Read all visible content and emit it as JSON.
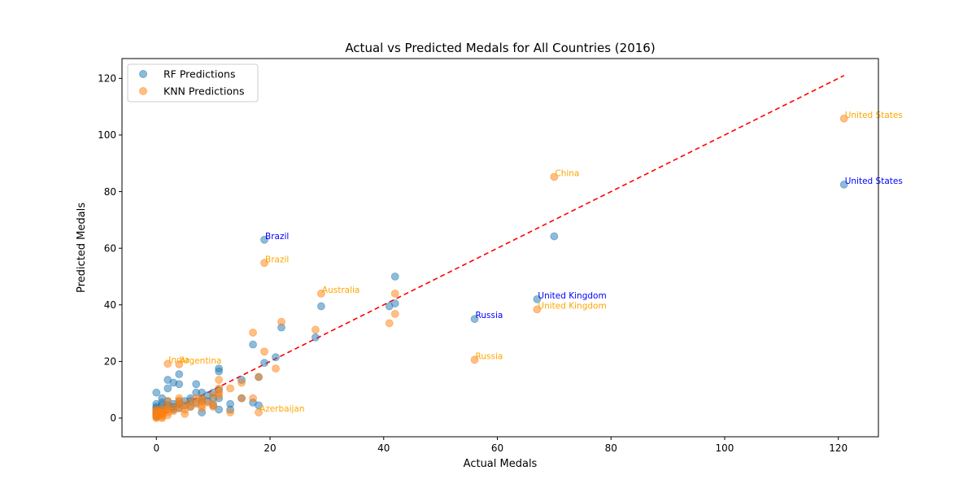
{
  "chart_data": {
    "type": "scatter",
    "title": "Actual vs Predicted Medals for All Countries (2016)",
    "xlabel": "Actual Medals",
    "ylabel": "Predicted Medals",
    "xlim": [
      -6.05,
      127.05
    ],
    "ylim": [
      -6.6,
      127
    ],
    "xticks": [
      0,
      20,
      40,
      60,
      80,
      100,
      120
    ],
    "yticks": [
      0,
      20,
      40,
      60,
      80,
      100,
      120
    ],
    "grid": false,
    "legend_position": "top-left",
    "reference_line": {
      "style": "dashed",
      "color": "#ff0000",
      "from": [
        0,
        0
      ],
      "to": [
        121,
        121
      ]
    },
    "series": [
      {
        "name": "RF Predictions",
        "color": "#1f77b4",
        "points": [
          [
            0,
            9
          ],
          [
            0,
            5
          ],
          [
            0,
            4
          ],
          [
            0,
            3.5
          ],
          [
            0,
            3
          ],
          [
            0,
            2.5
          ],
          [
            0,
            2
          ],
          [
            0,
            1.5
          ],
          [
            0,
            1
          ],
          [
            0,
            0.5
          ],
          [
            1,
            7
          ],
          [
            1,
            5.5
          ],
          [
            1,
            4.5
          ],
          [
            1,
            3.5
          ],
          [
            1,
            2.5
          ],
          [
            1,
            1.5
          ],
          [
            2,
            13.5
          ],
          [
            2,
            10.5
          ],
          [
            2,
            6
          ],
          [
            2,
            4.5
          ],
          [
            2,
            3.5
          ],
          [
            3,
            12.5
          ],
          [
            3,
            5
          ],
          [
            3,
            4
          ],
          [
            3,
            3
          ],
          [
            4,
            15.5
          ],
          [
            4,
            12
          ],
          [
            4,
            6
          ],
          [
            4,
            5
          ],
          [
            4,
            3.5
          ],
          [
            5,
            6
          ],
          [
            5,
            4.5
          ],
          [
            6,
            7
          ],
          [
            6,
            6
          ],
          [
            6,
            4
          ],
          [
            7,
            12
          ],
          [
            7,
            9
          ],
          [
            7,
            5.5
          ],
          [
            8,
            9
          ],
          [
            8,
            7
          ],
          [
            8,
            6
          ],
          [
            8,
            2
          ],
          [
            9,
            8
          ],
          [
            9,
            6
          ],
          [
            10,
            9
          ],
          [
            10,
            7
          ],
          [
            10,
            4.5
          ],
          [
            11,
            17.5
          ],
          [
            11,
            16.5
          ],
          [
            11,
            10
          ],
          [
            11,
            7
          ],
          [
            11,
            3
          ],
          [
            13,
            5
          ],
          [
            13,
            3
          ],
          [
            15,
            13.5
          ],
          [
            15,
            7
          ],
          [
            17,
            26
          ],
          [
            17,
            5.5
          ],
          [
            18,
            14.5
          ],
          [
            18,
            4.5
          ],
          [
            19,
            63
          ],
          [
            19,
            19.5
          ],
          [
            21,
            21.5
          ],
          [
            22,
            32
          ],
          [
            28,
            28.5
          ],
          [
            29,
            39.5
          ],
          [
            41,
            39.5
          ],
          [
            42,
            40.5
          ],
          [
            42,
            50
          ],
          [
            56,
            35
          ],
          [
            67,
            42
          ],
          [
            70,
            64.2
          ],
          [
            121,
            82.5
          ]
        ]
      },
      {
        "name": "KNN Predictions",
        "color": "#ff7f0e",
        "points": [
          [
            0,
            3
          ],
          [
            0,
            2.5
          ],
          [
            0,
            2
          ],
          [
            0,
            1.5
          ],
          [
            0,
            1
          ],
          [
            0,
            0.5
          ],
          [
            0,
            0
          ],
          [
            1,
            3.5
          ],
          [
            1,
            2.5
          ],
          [
            1,
            2
          ],
          [
            1,
            1.5
          ],
          [
            1,
            1
          ],
          [
            1,
            0.5
          ],
          [
            1,
            0
          ],
          [
            2,
            19.2
          ],
          [
            2,
            6
          ],
          [
            2,
            4
          ],
          [
            2,
            3
          ],
          [
            2,
            2
          ],
          [
            2,
            1
          ],
          [
            3,
            3.5
          ],
          [
            3,
            2.5
          ],
          [
            4,
            19
          ],
          [
            4,
            7
          ],
          [
            4,
            6
          ],
          [
            4,
            5
          ],
          [
            4,
            3.5
          ],
          [
            5,
            4.5
          ],
          [
            5,
            3
          ],
          [
            5,
            1.5
          ],
          [
            6,
            5.5
          ],
          [
            6,
            4
          ],
          [
            7,
            7
          ],
          [
            7,
            5
          ],
          [
            8,
            7
          ],
          [
            8,
            6
          ],
          [
            8,
            4.5
          ],
          [
            8,
            3.5
          ],
          [
            9,
            5.5
          ],
          [
            10,
            8
          ],
          [
            10,
            5
          ],
          [
            10,
            4
          ],
          [
            11,
            13.5
          ],
          [
            11,
            10.5
          ],
          [
            11,
            9
          ],
          [
            11,
            8
          ],
          [
            13,
            10.5
          ],
          [
            13,
            2
          ],
          [
            15,
            12.5
          ],
          [
            15,
            7
          ],
          [
            17,
            30.2
          ],
          [
            17,
            7
          ],
          [
            18,
            14.5
          ],
          [
            18,
            2
          ],
          [
            19,
            54.8
          ],
          [
            19,
            23.5
          ],
          [
            21,
            17.5
          ],
          [
            22,
            34
          ],
          [
            28,
            31.2
          ],
          [
            29,
            44
          ],
          [
            41,
            33.5
          ],
          [
            42,
            44
          ],
          [
            42,
            36.8
          ],
          [
            56,
            20.6
          ],
          [
            67,
            38.4
          ],
          [
            70,
            85.2
          ],
          [
            121,
            105.8
          ]
        ]
      }
    ],
    "annotations": [
      {
        "text": "United States",
        "x": 121,
        "y": 82.5,
        "series": "RF Predictions"
      },
      {
        "text": "Brazil",
        "x": 19,
        "y": 63,
        "series": "RF Predictions"
      },
      {
        "text": "United Kingdom",
        "x": 67,
        "y": 42,
        "series": "RF Predictions"
      },
      {
        "text": "Russia",
        "x": 56,
        "y": 35,
        "series": "RF Predictions"
      },
      {
        "text": "United States",
        "x": 121,
        "y": 105.8,
        "series": "KNN Predictions"
      },
      {
        "text": "China",
        "x": 70,
        "y": 85.2,
        "series": "KNN Predictions"
      },
      {
        "text": "Brazil",
        "x": 19,
        "y": 54.8,
        "series": "KNN Predictions"
      },
      {
        "text": "Australia",
        "x": 29,
        "y": 44,
        "series": "KNN Predictions"
      },
      {
        "text": "United Kingdom",
        "x": 67,
        "y": 38.4,
        "series": "KNN Predictions"
      },
      {
        "text": "Russia",
        "x": 56,
        "y": 20.6,
        "series": "KNN Predictions"
      },
      {
        "text": "India",
        "x": 2,
        "y": 19.2,
        "series": "KNN Predictions"
      },
      {
        "text": "Argentina",
        "x": 4,
        "y": 19,
        "series": "KNN Predictions"
      },
      {
        "text": "Azerbaijan",
        "x": 18,
        "y": 2,
        "series": "KNN Predictions"
      }
    ],
    "annotation_colors": {
      "RF Predictions": "#0000ff",
      "KNN Predictions": "#ffa500"
    }
  }
}
